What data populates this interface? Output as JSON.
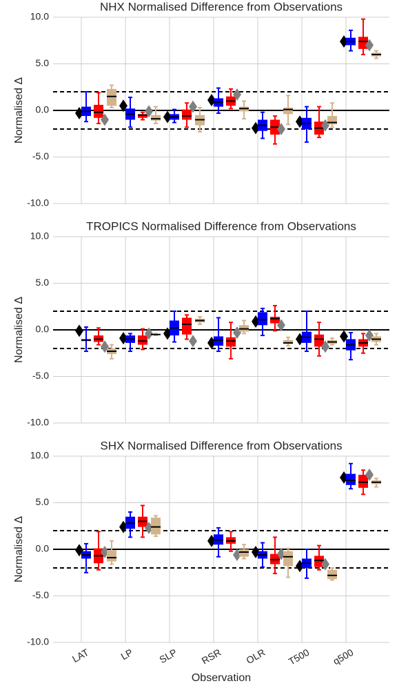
{
  "charts": [
    {
      "type": "box",
      "title": "NHX Normalised Difference from Observations",
      "ylabel": "Normalised Δ",
      "categories": [
        null,
        null,
        null,
        null,
        null,
        null,
        null
      ],
      "ylim": [
        -10,
        10
      ],
      "yticks": [
        {
          "value": -10,
          "label": "-10.0"
        },
        {
          "value": -5,
          "label": "-5.0"
        },
        {
          "value": 0,
          "label": "0.0"
        },
        {
          "value": 5,
          "label": "5.0"
        },
        {
          "value": 10,
          "label": "10.0"
        }
      ],
      "grid": true,
      "hlines": [
        {
          "y": 2,
          "dashed": true
        },
        {
          "y": 0,
          "dashed": false
        },
        {
          "y": -2,
          "dashed": true
        }
      ],
      "series": [
        {
          "kind": "marker",
          "color": "#000000",
          "values": [
            -0.3,
            0.5,
            -0.7,
            1.1,
            -1.9,
            -1.2,
            7.4
          ]
        },
        {
          "kind": "box",
          "color": "#0000ff",
          "values": [
            {
              "low": -1.2,
              "q1": -0.6,
              "median": -0.1,
              "q3": 0.4,
              "high": 2.0
            },
            {
              "low": -1.8,
              "q1": -1.0,
              "median": -0.4,
              "q3": 0.2,
              "high": 1.4
            },
            {
              "low": -1.3,
              "q1": -1.0,
              "median": -0.7,
              "q3": -0.4,
              "high": 0.1
            },
            {
              "low": -0.3,
              "q1": 0.4,
              "median": 0.9,
              "q3": 1.3,
              "high": 2.4
            },
            {
              "low": -3.0,
              "q1": -2.2,
              "median": -1.6,
              "q3": -1.0,
              "high": -0.2
            },
            {
              "low": -3.4,
              "q1": -2.0,
              "median": -1.4,
              "q3": -0.8,
              "high": 0.4
            },
            {
              "low": 6.4,
              "q1": 7.0,
              "median": 7.4,
              "q3": 7.8,
              "high": 8.6
            }
          ]
        },
        {
          "kind": "box",
          "color": "#ff0000",
          "values": [
            {
              "low": -1.4,
              "q1": -0.8,
              "median": -0.2,
              "q3": 0.6,
              "high": 1.9
            },
            {
              "low": -1.0,
              "q1": -0.8,
              "median": -0.5,
              "q3": -0.4,
              "high": -0.2
            },
            {
              "low": -1.8,
              "q1": -1.0,
              "median": -0.6,
              "q3": 0.1,
              "high": 0.8
            },
            {
              "low": 0.2,
              "q1": 0.5,
              "median": 1.0,
              "q3": 1.5,
              "high": 2.3
            },
            {
              "low": -3.6,
              "q1": -2.6,
              "median": -1.8,
              "q3": -1.0,
              "high": -0.6
            },
            {
              "low": -2.9,
              "q1": -2.6,
              "median": -1.9,
              "q3": -1.2,
              "high": 0.4
            },
            {
              "low": 6.0,
              "q1": 6.6,
              "median": 7.4,
              "q3": 7.9,
              "high": 9.8
            }
          ]
        },
        {
          "kind": "marker",
          "color": "#808080",
          "values": [
            -1.0,
            -0.1,
            0.4,
            1.7,
            -2.0,
            -1.6,
            7.0
          ]
        },
        {
          "kind": "box",
          "color": "#d2b48c",
          "values": [
            {
              "low": 0.3,
              "q1": 0.5,
              "median": 1.5,
              "q3": 2.3,
              "high": 2.7
            },
            {
              "low": -1.4,
              "q1": -1.1,
              "median": -0.9,
              "q3": -0.5,
              "high": 0.4
            },
            {
              "low": -2.3,
              "q1": -1.6,
              "median": -1.0,
              "q3": -0.5,
              "high": 0.3
            },
            {
              "low": -0.9,
              "q1": -0.1,
              "median": 0.2,
              "q3": 0.4,
              "high": 1.0
            },
            {
              "low": -1.5,
              "q1": -0.4,
              "median": 0.1,
              "q3": 0.3,
              "high": 1.6
            },
            {
              "low": -1.8,
              "q1": -1.5,
              "median": -1.3,
              "q3": -0.6,
              "high": 0.8
            },
            {
              "low": 5.6,
              "q1": 5.8,
              "median": 6.0,
              "q3": 6.2,
              "high": 6.4
            }
          ]
        }
      ]
    },
    {
      "type": "box",
      "title": "TROPICS Normalised Difference from Observations",
      "ylabel": "Normalised Δ",
      "categories": [
        null,
        null,
        null,
        null,
        null,
        null,
        null
      ],
      "ylim": [
        -10,
        10
      ],
      "yticks": [
        {
          "value": -10,
          "label": "-10.0"
        },
        {
          "value": -5,
          "label": "-5.0"
        },
        {
          "value": 0,
          "label": "0.0"
        },
        {
          "value": 5,
          "label": "5.0"
        },
        {
          "value": 10,
          "label": "10.0"
        }
      ],
      "grid": true,
      "hlines": [
        {
          "y": 2,
          "dashed": true
        },
        {
          "y": 0,
          "dashed": false
        },
        {
          "y": -2,
          "dashed": true
        }
      ],
      "series": [
        {
          "kind": "marker",
          "color": "#000000",
          "values": [
            -0.1,
            -0.9,
            -0.4,
            -1.4,
            0.9,
            -1.0,
            -0.7
          ]
        },
        {
          "kind": "box",
          "color": "#0000ff",
          "values": [
            {
              "low": -2.3,
              "q1": -1.2,
              "median": -1.1,
              "q3": -1.0,
              "high": 0.3
            },
            {
              "low": -2.3,
              "q1": -1.4,
              "median": -1.0,
              "q3": -0.6,
              "high": -0.4
            },
            {
              "low": -1.3,
              "q1": -0.6,
              "median": 0.2,
              "q3": 1.0,
              "high": 2.0
            },
            {
              "low": -2.3,
              "q1": -1.7,
              "median": -1.1,
              "q3": -0.7,
              "high": 1.3
            },
            {
              "low": -0.6,
              "q1": 0.5,
              "median": 1.1,
              "q3": 1.9,
              "high": 2.3
            },
            {
              "low": -2.3,
              "q1": -1.4,
              "median": -0.8,
              "q3": -0.2,
              "high": 2.0
            },
            {
              "low": -3.2,
              "q1": -2.2,
              "median": -1.6,
              "q3": -1.0,
              "high": -0.3
            }
          ]
        },
        {
          "kind": "box",
          "color": "#ff0000",
          "values": [
            {
              "low": -1.6,
              "q1": -1.3,
              "median": -1.0,
              "q3": -0.6,
              "high": 0.2
            },
            {
              "low": -2.1,
              "q1": -1.6,
              "median": -1.2,
              "q3": -0.6,
              "high": 0.1
            },
            {
              "low": -1.0,
              "q1": -0.5,
              "median": 0.6,
              "q3": 1.3,
              "high": 1.6
            },
            {
              "low": -3.1,
              "q1": -1.8,
              "median": -1.2,
              "q3": -0.8,
              "high": 0.8
            },
            {
              "low": -0.1,
              "q1": 0.7,
              "median": 1.2,
              "q3": 1.4,
              "high": 2.6
            },
            {
              "low": -2.8,
              "q1": -1.8,
              "median": -1.0,
              "q3": -0.5,
              "high": 0.8
            },
            {
              "low": -2.5,
              "q1": -1.8,
              "median": -1.4,
              "q3": -1.0,
              "high": -0.4
            }
          ]
        },
        {
          "kind": "marker",
          "color": "#808080",
          "values": [
            -1.8,
            -0.4,
            -1.2,
            -0.3,
            0.5,
            -1.8,
            -0.6
          ]
        },
        {
          "kind": "box",
          "color": "#d2b48c",
          "values": [
            {
              "low": -3.1,
              "q1": -2.6,
              "median": -2.3,
              "q3": -2.0,
              "high": -1.6
            },
            {
              "low": -0.6,
              "q1": -0.55,
              "median": -0.5,
              "q3": -0.45,
              "high": -0.4
            },
            {
              "low": 0.6,
              "q1": 0.8,
              "median": 1.0,
              "q3": 1.2,
              "high": 1.4
            },
            {
              "low": -0.4,
              "q1": -0.2,
              "median": 0.1,
              "q3": 0.5,
              "high": 1.0
            },
            {
              "low": -1.7,
              "q1": -1.5,
              "median": -1.4,
              "q3": -1.1,
              "high": -0.8
            },
            {
              "low": -1.6,
              "q1": -1.5,
              "median": -1.3,
              "q3": -1.1,
              "high": -0.9
            },
            {
              "low": -1.6,
              "q1": -1.3,
              "median": -1.0,
              "q3": -0.7,
              "high": -0.4
            }
          ]
        }
      ]
    },
    {
      "type": "box",
      "title": "SHX Normalised Difference from Observations",
      "ylabel": "Normalised Δ",
      "xlabel": "Observation",
      "categories": [
        "LAT",
        "LP",
        "SLP",
        "RSR",
        "OLR",
        "T500",
        "q500"
      ],
      "ylim": [
        -10,
        10
      ],
      "yticks": [
        {
          "value": -10,
          "label": "-10.0"
        },
        {
          "value": -5,
          "label": "-5.0"
        },
        {
          "value": 0,
          "label": "0.0"
        },
        {
          "value": 5,
          "label": "5.0"
        },
        {
          "value": 10,
          "label": "10.0"
        }
      ],
      "grid": true,
      "hlines": [
        {
          "y": 2,
          "dashed": true
        },
        {
          "y": 0,
          "dashed": false
        },
        {
          "y": -2,
          "dashed": true
        }
      ],
      "series": [
        {
          "kind": "marker",
          "color": "#000000",
          "values": [
            -0.1,
            2.4,
            null,
            0.9,
            -0.3,
            -1.8,
            7.7
          ]
        },
        {
          "kind": "box",
          "color": "#0000ff",
          "values": [
            {
              "low": -2.5,
              "q1": -1.0,
              "median": -0.6,
              "q3": -0.2,
              "high": 0.6
            },
            {
              "low": 1.3,
              "q1": 2.2,
              "median": 2.8,
              "q3": 3.5,
              "high": 4.0
            },
            null,
            {
              "low": -0.8,
              "q1": 0.5,
              "median": 1.0,
              "q3": 1.6,
              "high": 2.3
            },
            {
              "low": -1.9,
              "q1": -1.0,
              "median": -0.6,
              "q3": -0.2,
              "high": 0.7
            },
            {
              "low": -3.1,
              "q1": -2.0,
              "median": -1.5,
              "q3": -1.0,
              "high": 0.0
            },
            {
              "low": 6.5,
              "q1": 6.9,
              "median": 7.4,
              "q3": 8.1,
              "high": 9.2
            }
          ]
        },
        {
          "kind": "box",
          "color": "#ff0000",
          "values": [
            {
              "low": -2.2,
              "q1": -1.5,
              "median": -0.7,
              "q3": 0.1,
              "high": 1.9
            },
            {
              "low": 1.3,
              "q1": 2.4,
              "median": 3.0,
              "q3": 3.5,
              "high": 4.7
            },
            null,
            {
              "low": -0.2,
              "q1": 0.6,
              "median": 0.9,
              "q3": 1.3,
              "high": 1.9
            },
            {
              "low": -2.6,
              "q1": -1.6,
              "median": -1.1,
              "q3": -0.5,
              "high": 1.3
            },
            {
              "low": -2.2,
              "q1": -1.9,
              "median": -1.2,
              "q3": -0.7,
              "high": 0.4
            },
            {
              "low": 5.9,
              "q1": 6.6,
              "median": 7.2,
              "q3": 8.0,
              "high": 8.5
            }
          ]
        },
        {
          "kind": "marker",
          "color": "#808080",
          "values": [
            -0.3,
            2.3,
            null,
            -0.6,
            -0.5,
            -1.6,
            8.0
          ]
        },
        {
          "kind": "box",
          "color": "#d2b48c",
          "values": [
            {
              "low": -1.6,
              "q1": -1.3,
              "median": -0.9,
              "q3": -0.1,
              "high": 0.9
            },
            {
              "low": 1.4,
              "q1": 1.6,
              "median": 2.4,
              "q3": 3.4,
              "high": 3.6
            },
            null,
            {
              "low": -1.0,
              "q1": -0.8,
              "median": -0.3,
              "q3": 0.0,
              "high": 0.5
            },
            {
              "low": -3.0,
              "q1": -1.8,
              "median": -0.8,
              "q3": -0.2,
              "high": 0.1
            },
            {
              "low": -3.3,
              "q1": -3.2,
              "median": -2.8,
              "q3": -2.2,
              "high": -2.0
            },
            {
              "low": 6.7,
              "q1": 7.0,
              "median": 7.2,
              "q3": 7.4,
              "high": 7.6
            }
          ]
        }
      ]
    }
  ]
}
